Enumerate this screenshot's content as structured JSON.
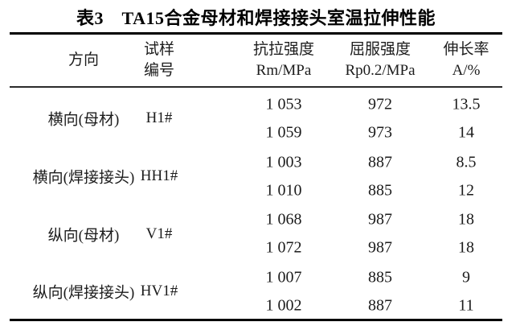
{
  "title": "表3　TA15合金母材和焊接接头室温拉伸性能",
  "columns": [
    {
      "line1": "方向",
      "line2": ""
    },
    {
      "line1": "试样",
      "line2": "编号"
    },
    {
      "line1": "抗拉强度",
      "line2": "Rm/MPa"
    },
    {
      "line1": "屈服强度",
      "line2": "Rp0.2/MPa"
    },
    {
      "line1": "伸长率",
      "line2": "A/%"
    }
  ],
  "groups": [
    {
      "direction": "横向(母材)",
      "specimen": "H1#",
      "rows": [
        [
          "1 053",
          "972",
          "13.5"
        ],
        [
          "1 059",
          "973",
          "14"
        ]
      ]
    },
    {
      "direction": "横向(焊接接头)",
      "specimen": "HH1#",
      "rows": [
        [
          "1 003",
          "887",
          "8.5"
        ],
        [
          "1 010",
          "885",
          "12"
        ]
      ]
    },
    {
      "direction": "纵向(母材)",
      "specimen": "V1#",
      "rows": [
        [
          "1 068",
          "987",
          "18"
        ],
        [
          "1 072",
          "987",
          "18"
        ]
      ]
    },
    {
      "direction": "纵向(焊接接头)",
      "specimen": "HV1#",
      "rows": [
        [
          "1 007",
          "885",
          "9"
        ],
        [
          "1 002",
          "887",
          "11"
        ]
      ]
    }
  ],
  "colors": {
    "text": "#1c1c1c",
    "rule": "#000000",
    "background": "#ffffff"
  }
}
